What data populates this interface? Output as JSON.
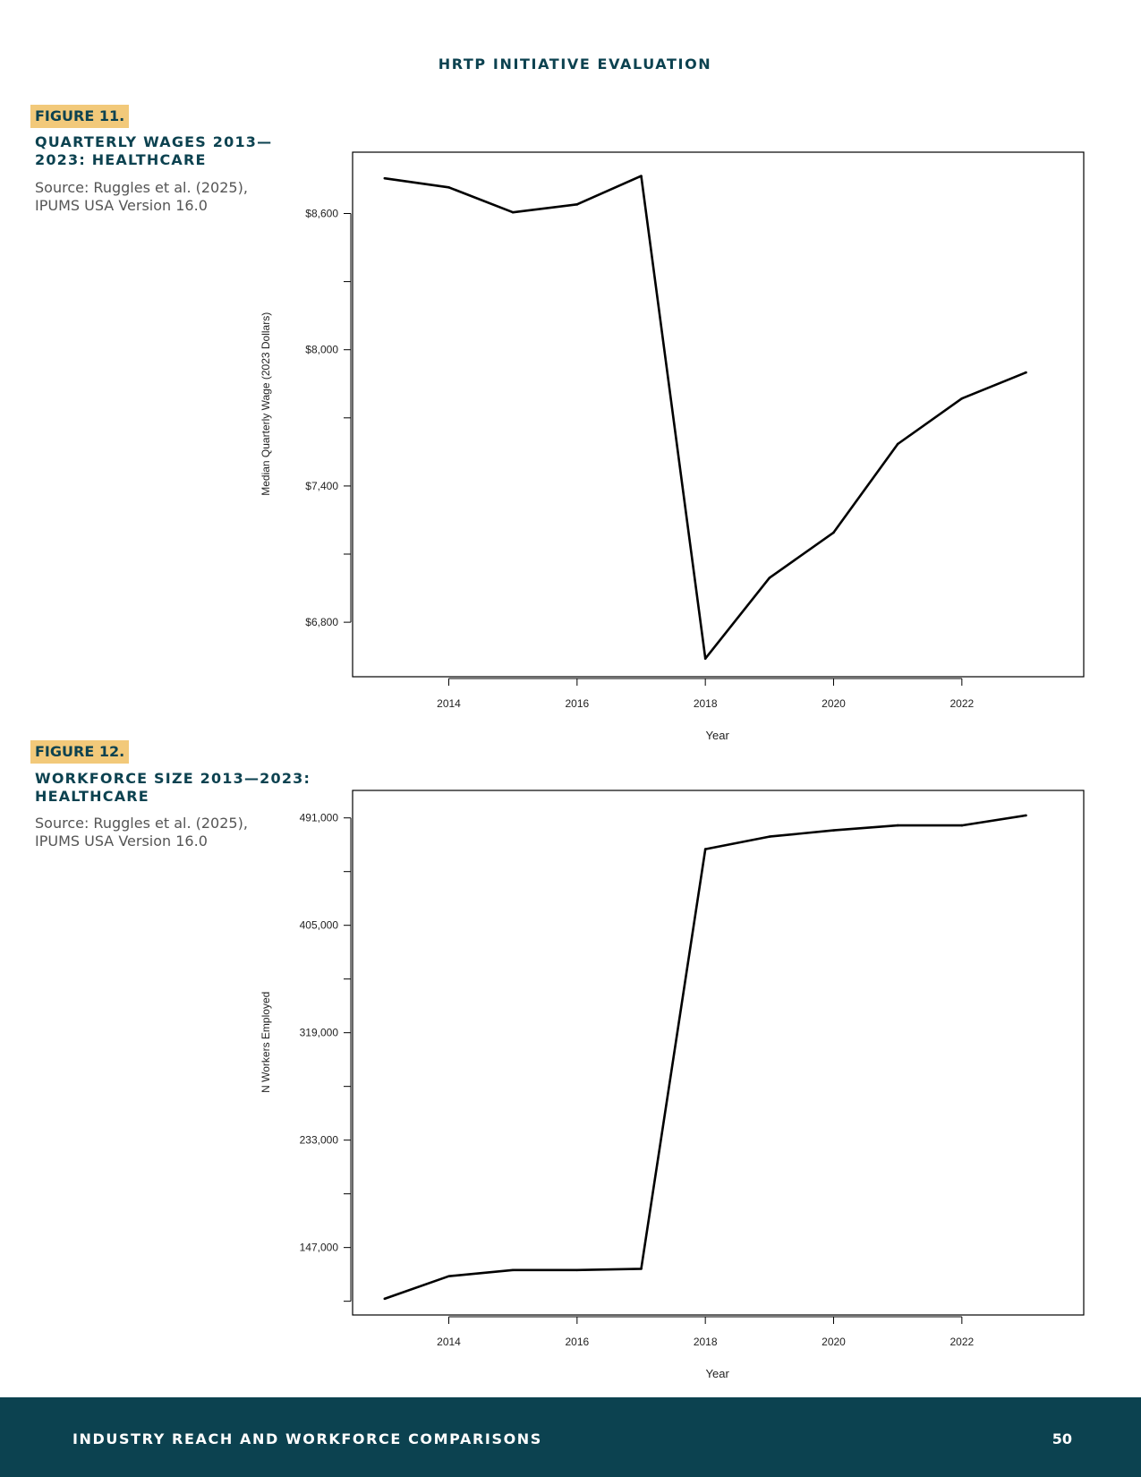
{
  "header": {
    "title": "HRTP INITIATIVE EVALUATION"
  },
  "figures": [
    {
      "tag": "FIGURE 11.",
      "title": "QUARTERLY WAGES 2013—2023: HEALTHCARE",
      "source": "Source: Ruggles et al. (2025), IPUMS USA Version 16.0"
    },
    {
      "tag": "FIGURE 12.",
      "title": "WORKFORCE SIZE 2013—2023: HEALTHCARE",
      "source": "Source: Ruggles et al. (2025), IPUMS USA Version 16.0"
    }
  ],
  "chart_data": [
    {
      "type": "line",
      "title": "",
      "xlabel": "Year",
      "ylabel": "Median Quarterly Wage (2023 Dollars)",
      "x": [
        2013,
        2014,
        2015,
        2016,
        2017,
        2018,
        2019,
        2020,
        2021,
        2022,
        2023
      ],
      "series": [
        {
          "values": [
            8755,
            8715,
            8605,
            8640,
            8765,
            6640,
            6995,
            7195,
            7585,
            7785,
            7900
          ]
        }
      ],
      "xlim": [
        2012.5,
        2023.9
      ],
      "ylim": [
        6560,
        8870
      ],
      "xticks": [
        2014,
        2016,
        2018,
        2020,
        2022
      ],
      "xtick_labels": [
        "2014",
        "2016",
        "2018",
        "2020",
        "2022"
      ],
      "yticks": [
        6800,
        7100,
        7400,
        7700,
        8000,
        8300,
        8600
      ],
      "ytick_labels": [
        "$6,800",
        "",
        "$7,400",
        "",
        "$8,000",
        "",
        "$8,600"
      ],
      "grid": false,
      "line_color": "#000000"
    },
    {
      "type": "line",
      "title": "",
      "xlabel": "Year",
      "ylabel": "N Workers Employed",
      "x": [
        2013,
        2014,
        2015,
        2016,
        2017,
        2018,
        2019,
        2020,
        2021,
        2022,
        2023
      ],
      "series": [
        {
          "values": [
            106000,
            124000,
            129000,
            129000,
            130000,
            466000,
            476000,
            481000,
            485000,
            485000,
            493000
          ]
        }
      ],
      "xlim": [
        2012.5,
        2023.9
      ],
      "ylim": [
        93000,
        513000
      ],
      "xticks": [
        2014,
        2016,
        2018,
        2020,
        2022
      ],
      "xtick_labels": [
        "2014",
        "2016",
        "2018",
        "2020",
        "2022"
      ],
      "yticks": [
        104000,
        147000,
        190000,
        233000,
        276000,
        319000,
        362000,
        405000,
        448000,
        491000
      ],
      "ytick_labels": [
        "",
        "147,000",
        "",
        "233,000",
        "",
        "319,000",
        "",
        "405,000",
        "",
        "491,000"
      ],
      "grid": false,
      "line_color": "#000000"
    }
  ],
  "footer": {
    "label": "INDUSTRY REACH AND WORKFORCE COMPARISONS",
    "page_number": "50"
  }
}
